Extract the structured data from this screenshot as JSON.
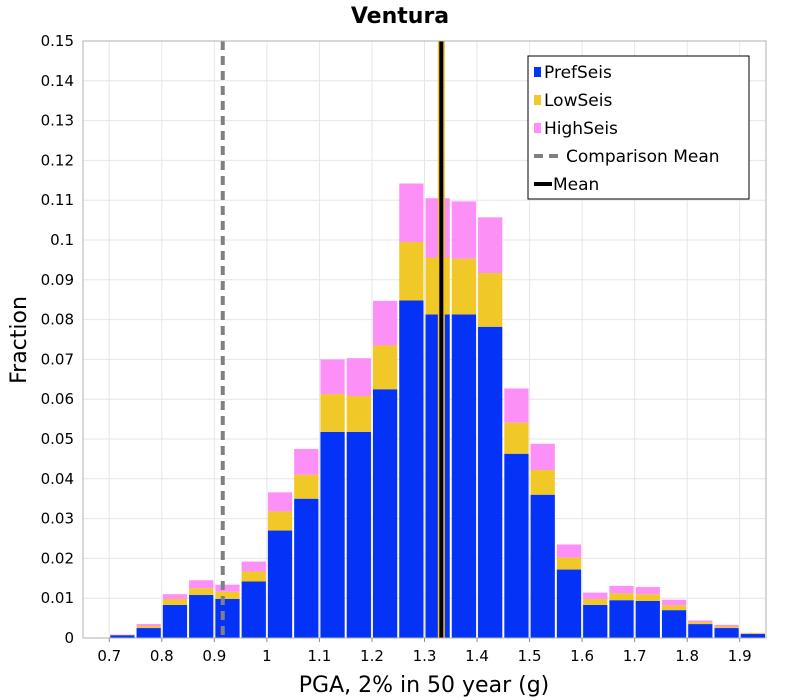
{
  "chart_data": {
    "type": "bar",
    "stacked": true,
    "title": "Ventura",
    "xlabel": "PGA, 2% in 50 year (g)",
    "ylabel": "Fraction",
    "xlim": [
      0.65,
      1.95
    ],
    "ylim": [
      0,
      0.15
    ],
    "xticks": [
      "0.7",
      "0.8",
      "0.9",
      "1",
      "1.1",
      "1.2",
      "1.3",
      "1.4",
      "1.5",
      "1.6",
      "1.7",
      "1.8",
      "1.9"
    ],
    "yticks": [
      "0",
      "0.01",
      "0.02",
      "0.03",
      "0.04",
      "0.05",
      "0.06",
      "0.07",
      "0.08",
      "0.09",
      "0.1",
      "0.11",
      "0.12",
      "0.13",
      "0.14",
      "0.15"
    ],
    "bin_width": 0.05,
    "x": [
      0.725,
      0.775,
      0.825,
      0.875,
      0.925,
      0.975,
      1.025,
      1.075,
      1.125,
      1.175,
      1.225,
      1.275,
      1.325,
      1.375,
      1.425,
      1.475,
      1.525,
      1.575,
      1.625,
      1.675,
      1.725,
      1.775,
      1.825,
      1.875,
      1.925
    ],
    "series": [
      {
        "name": "PrefSeis",
        "color": "#0532f7",
        "values": [
          0.0007,
          0.0025,
          0.0083,
          0.0108,
          0.0098,
          0.0142,
          0.027,
          0.035,
          0.0518,
          0.0518,
          0.0625,
          0.0848,
          0.0813,
          0.0813,
          0.0782,
          0.0463,
          0.036,
          0.0172,
          0.0083,
          0.0095,
          0.0093,
          0.007,
          0.0035,
          0.0025,
          0.001
        ]
      },
      {
        "name": "LowSeis",
        "color": "#f0c928",
        "values": [
          0.0001,
          0.0005,
          0.0015,
          0.0017,
          0.0018,
          0.0025,
          0.0048,
          0.006,
          0.0095,
          0.009,
          0.011,
          0.0147,
          0.0143,
          0.014,
          0.0135,
          0.0078,
          0.0062,
          0.003,
          0.0015,
          0.0017,
          0.0017,
          0.0012,
          0.0005,
          0.0004,
          0.0002
        ]
      },
      {
        "name": "HighSeis",
        "color": "#fc90f6",
        "values": [
          0.0001,
          0.0005,
          0.0012,
          0.002,
          0.0018,
          0.0025,
          0.0048,
          0.0065,
          0.0087,
          0.0095,
          0.0112,
          0.0147,
          0.0149,
          0.0144,
          0.014,
          0.0086,
          0.0066,
          0.0033,
          0.0016,
          0.0019,
          0.0018,
          0.0014,
          0.0004,
          0.0004,
          0.0001
        ]
      }
    ],
    "lines": [
      {
        "name": "Comparison Mean",
        "x": 0.916,
        "style": "dashed",
        "color": "#808080"
      },
      {
        "name": "Mean",
        "x": 1.332,
        "style": "solid",
        "color": "#000000"
      }
    ],
    "grid": true,
    "legend_position": "top-right"
  }
}
